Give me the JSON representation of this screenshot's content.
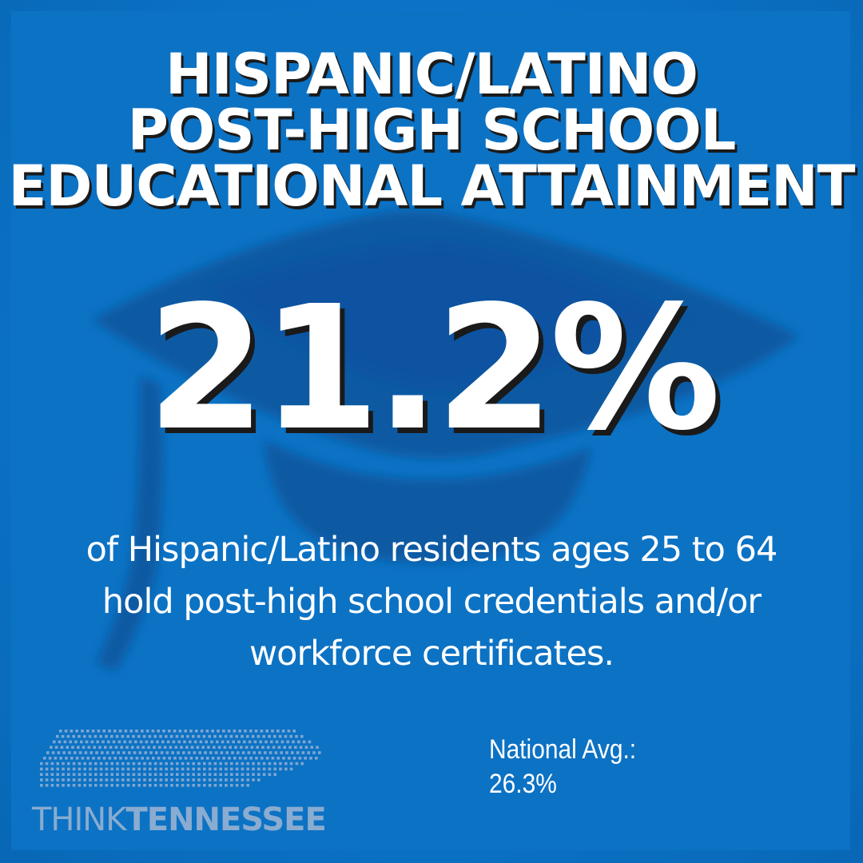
{
  "title": {
    "lines": [
      "HISPANIC/LATINO",
      "POST-HIGH SCHOOL",
      "EDUCATIONAL ATTAINMENT"
    ]
  },
  "statistic": {
    "value": "21.2%",
    "description": "of Hispanic/Latino residents ages 25 to 64 hold post-high school credentials and/or workforce certificates."
  },
  "comparison": {
    "label": "National Avg.:",
    "value": "26.3%"
  },
  "logo": {
    "part1": "THINK",
    "part2": "TENNESSEE"
  },
  "colors": {
    "background": "#0c72c4",
    "cap_silhouette": "#0a5aa3",
    "text": "#ffffff",
    "text_shadow": "#1a1a1a",
    "logo": "#89acd0"
  },
  "icons": {
    "background": "graduation-cap-icon",
    "logo": "tennessee-state-dots-icon"
  }
}
